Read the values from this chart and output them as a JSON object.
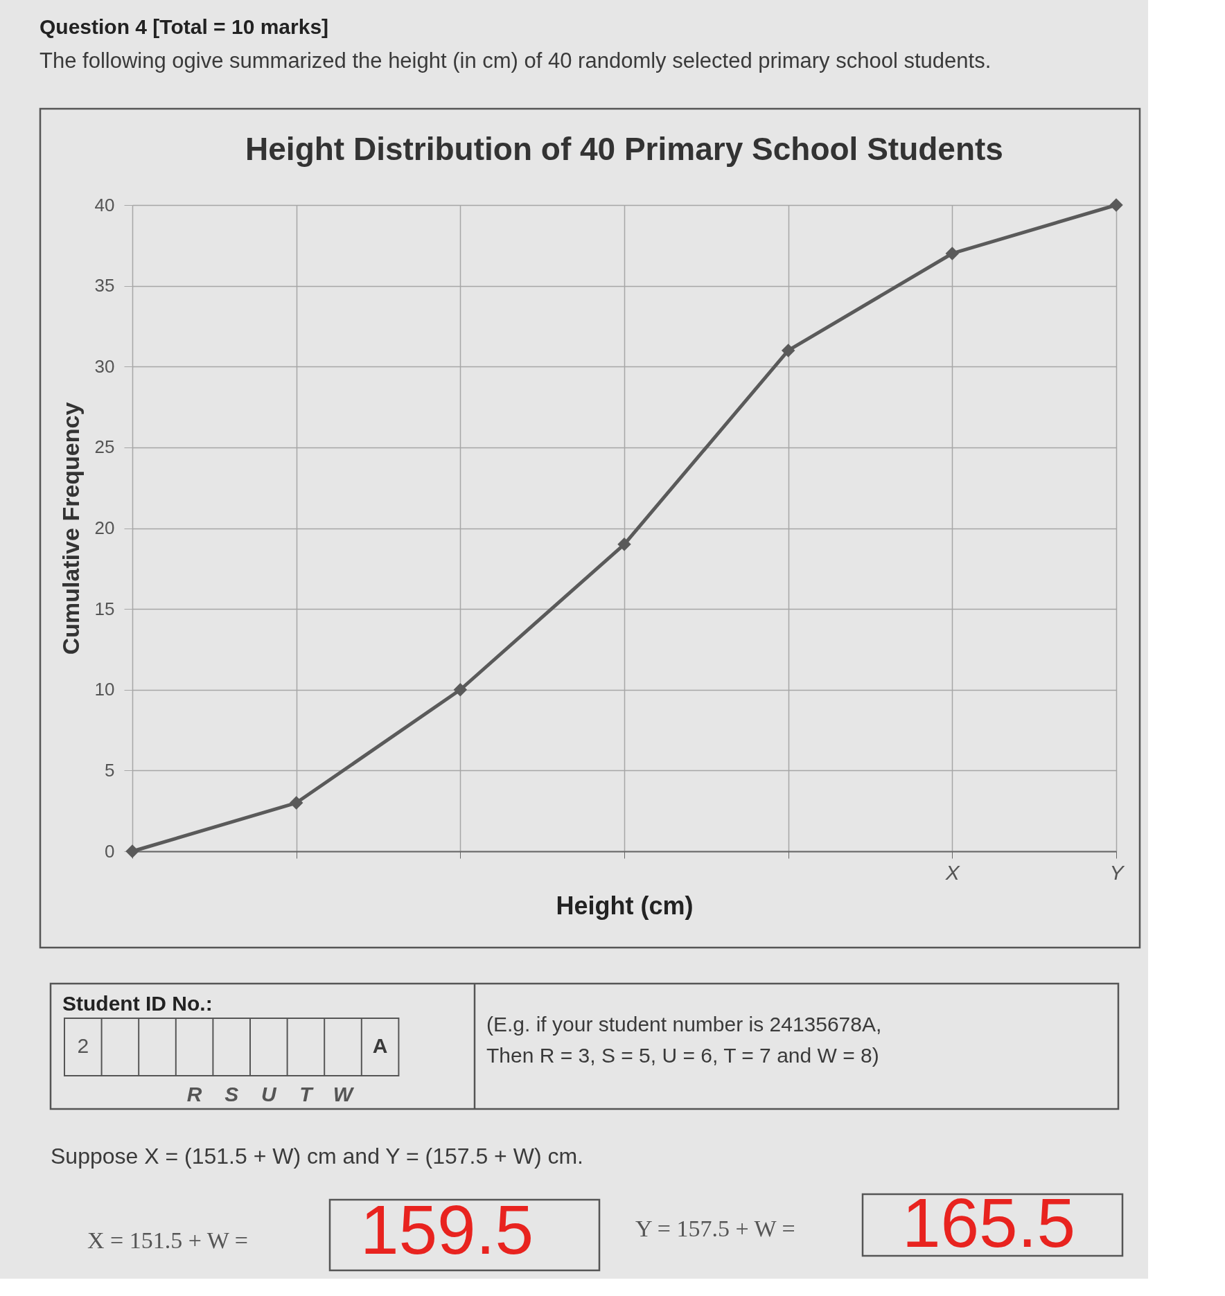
{
  "chart_data": {
    "type": "line",
    "title": "Height Distribution of 40 Primary School Students",
    "xlabel": "Height (cm)",
    "ylabel": "Cumulative Frequency",
    "categories": [
      null,
      null,
      null,
      null,
      null,
      "X",
      "Y"
    ],
    "series": [
      {
        "color": "#5a5a5a",
        "values": [
          0,
          3,
          10,
          19,
          31,
          37,
          40
        ]
      }
    ],
    "ylim": [
      0,
      40
    ],
    "yticks": [
      0,
      5,
      10,
      15,
      20,
      25,
      30,
      35,
      40
    ],
    "grid": true,
    "marker": "diamond",
    "line_style": "solid",
    "annotations": [
      "Question 4 [Total = 10 marks]",
      "The following ogive summarized the height (in cm) of 40 randomly selected primary school students.",
      "Student ID No.:",
      "2",
      "A",
      "R",
      "S",
      "U",
      "T",
      "W",
      "(E.g. if your student number is 24135678A,",
      "Then R = 3, S = 5, U = 6, T = 7 and W = 8)",
      "Suppose X = (151.5 + W) cm and Y = (157.5 + W) cm.",
      "X = 151.5 + W =",
      "159.5",
      "Y = 157.5 + W =",
      "165.5"
    ]
  }
}
